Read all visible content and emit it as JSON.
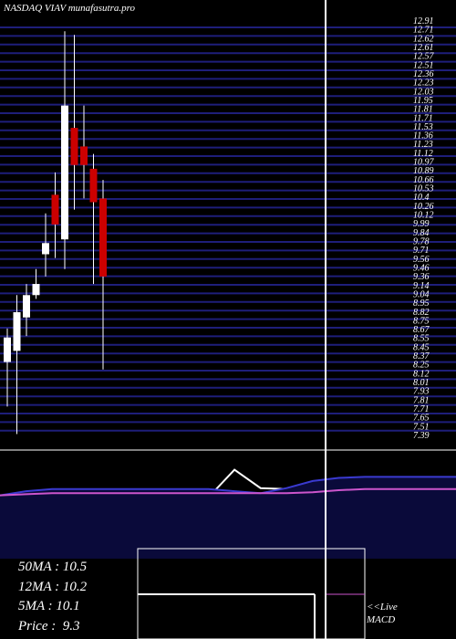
{
  "title": "NASDAQ VIAV munafasutra.pro",
  "chart_data": [
    {
      "type": "candlestick",
      "title": "NASDAQ VIAV munafasutra.pro",
      "x_labels": [],
      "price_ticks": [
        "12.91",
        "12.71",
        "12.62",
        "12.61",
        "12.57",
        "12.51",
        "12.36",
        "12.23",
        "12.03",
        "11.95",
        "11.81",
        "11.71",
        "11.53",
        "11.36",
        "11.23",
        "11.12",
        "10.97",
        "10.89",
        "10.66",
        "10.53",
        "10.4",
        "10.26",
        "10.12",
        "9.99",
        "9.84",
        "9.78",
        "9.71",
        "9.56",
        "9.46",
        "9.36",
        "9.14",
        "9.04",
        "8.95",
        "8.82",
        "8.75",
        "8.67",
        "8.55",
        "8.45",
        "8.37",
        "8.25",
        "8.12",
        "8.01",
        "7.93",
        "7.81",
        "7.71",
        "7.65",
        "7.51",
        "7.39"
      ],
      "ylim": [
        7.35,
        12.95
      ],
      "colors": {
        "up": "#ffffff",
        "down": "#cc0000",
        "grid": "#1e1e7a",
        "cursor": "#ffffff"
      },
      "candles": [
        {
          "open": 8.35,
          "high": 8.8,
          "low": 7.75,
          "close": 8.68,
          "dir": "up"
        },
        {
          "open": 8.5,
          "high": 9.25,
          "low": 7.38,
          "close": 9.02,
          "dir": "up"
        },
        {
          "open": 8.95,
          "high": 9.4,
          "low": 8.7,
          "close": 9.25,
          "dir": "up"
        },
        {
          "open": 9.25,
          "high": 9.6,
          "low": 9.2,
          "close": 9.4,
          "dir": "up"
        },
        {
          "open": 9.8,
          "high": 10.35,
          "low": 9.5,
          "close": 9.95,
          "dir": "up"
        },
        {
          "open": 10.6,
          "high": 10.9,
          "low": 9.75,
          "close": 10.2,
          "dir": "down"
        },
        {
          "open": 10.0,
          "high": 12.8,
          "low": 9.6,
          "close": 11.8,
          "dir": "up"
        },
        {
          "open": 11.5,
          "high": 12.75,
          "low": 10.4,
          "close": 11.0,
          "dir": "down"
        },
        {
          "open": 11.25,
          "high": 11.8,
          "low": 10.55,
          "close": 11.0,
          "dir": "down"
        },
        {
          "open": 10.95,
          "high": 11.15,
          "low": 9.4,
          "close": 10.5,
          "dir": "down"
        },
        {
          "open": 10.55,
          "high": 10.8,
          "low": 8.25,
          "close": 9.5,
          "dir": "down"
        }
      ]
    },
    {
      "type": "line",
      "title": "MACD",
      "series": [
        {
          "values": [
            20,
            20,
            24,
            30,
            34,
            36,
            45,
            60,
            60,
            87,
            69,
            68,
            66,
            50,
            25
          ],
          "color": "#ffffff"
        },
        {
          "values": [
            62,
            66,
            68,
            68,
            68,
            68,
            68,
            68,
            68,
            66,
            64,
            69,
            76,
            79,
            80
          ],
          "color": "#3a3ad0"
        },
        {
          "values": [
            62,
            63,
            64,
            64,
            64,
            64,
            64,
            64,
            64,
            64,
            64,
            64,
            65,
            67,
            68
          ],
          "color": "#cc55cc"
        }
      ],
      "ylim": [
        0,
        100
      ],
      "inset_lines": [
        48,
        0
      ]
    }
  ],
  "ma": [
    {
      "label": "50MA",
      "value": "10.5"
    },
    {
      "label": "12MA",
      "value": "10.2"
    },
    {
      "label": "5MA",
      "value": "10.1"
    },
    {
      "label": "Price ",
      "value": "9.3"
    }
  ],
  "macd_label": {
    "line1": "<<Live",
    "line2": "MACD"
  }
}
